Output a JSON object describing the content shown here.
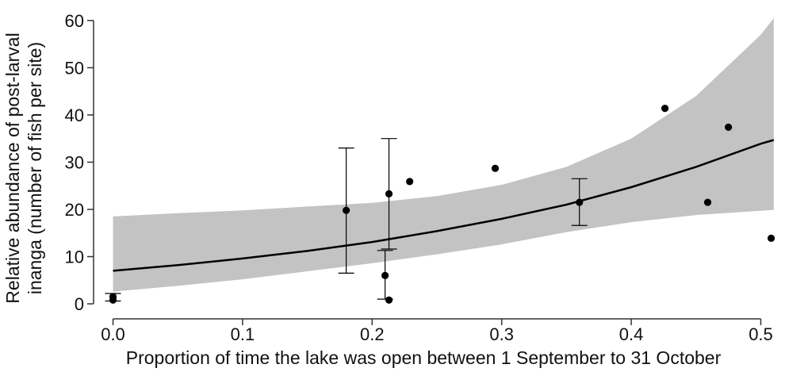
{
  "chart_data": {
    "type": "scatter",
    "xlabel": "Proportion of time the lake was open between 1 September to 31 October",
    "ylabel_lines": [
      "Relative abundance of post-larval",
      "inanga (number of fish per site)"
    ],
    "xlim": [
      -0.015,
      0.515
    ],
    "ylim": [
      -1.5,
      63
    ],
    "xticks": [
      0.0,
      0.1,
      0.2,
      0.3,
      0.4,
      0.5
    ],
    "xtick_labels": [
      "0.0",
      "0.1",
      "0.2",
      "0.3",
      "0.4",
      "0.5"
    ],
    "yticks": [
      0,
      10,
      20,
      30,
      40,
      50,
      60
    ],
    "ytick_labels": [
      "0",
      "10",
      "20",
      "30",
      "40",
      "50",
      "60"
    ],
    "grid": false,
    "points": [
      {
        "x": 0.0,
        "y": 1.5
      },
      {
        "x": 0.0,
        "y": 0.8
      },
      {
        "x": 0.18,
        "y": 19.8
      },
      {
        "x": 0.21,
        "y": 6.0
      },
      {
        "x": 0.213,
        "y": 23.3
      },
      {
        "x": 0.213,
        "y": 0.8
      },
      {
        "x": 0.229,
        "y": 25.9
      },
      {
        "x": 0.295,
        "y": 28.7
      },
      {
        "x": 0.36,
        "y": 21.5
      },
      {
        "x": 0.426,
        "y": 41.4
      },
      {
        "x": 0.459,
        "y": 21.5
      },
      {
        "x": 0.475,
        "y": 37.4
      },
      {
        "x": 0.508,
        "y": 13.9
      }
    ],
    "error_bars": [
      {
        "x": 0.0,
        "low": 0.6,
        "high": 2.2
      },
      {
        "x": 0.18,
        "low": 6.5,
        "high": 33.0
      },
      {
        "x": 0.21,
        "low": 1.0,
        "high": 11.3
      },
      {
        "x": 0.213,
        "low": 11.6,
        "high": 35.0
      },
      {
        "x": 0.36,
        "low": 16.6,
        "high": 26.5
      }
    ],
    "fit_line": {
      "x": [
        0.0,
        0.05,
        0.1,
        0.15,
        0.2,
        0.25,
        0.3,
        0.35,
        0.4,
        0.45,
        0.5,
        0.51
      ],
      "y": [
        7.0,
        8.2,
        9.6,
        11.2,
        13.1,
        15.4,
        18.0,
        21.0,
        24.7,
        29.0,
        33.9,
        34.7
      ]
    },
    "confidence_band": {
      "x": [
        0.0,
        0.05,
        0.1,
        0.15,
        0.2,
        0.25,
        0.3,
        0.35,
        0.4,
        0.45,
        0.5,
        0.51
      ],
      "lower": [
        2.6,
        3.8,
        5.2,
        6.9,
        8.6,
        10.5,
        12.6,
        15.2,
        17.3,
        18.8,
        19.7,
        19.9
      ],
      "upper": [
        18.5,
        19.2,
        19.8,
        20.6,
        21.4,
        22.8,
        25.2,
        29.0,
        35.0,
        44.0,
        57.0,
        60.5
      ]
    },
    "colors": {
      "band": "#c3c3c3",
      "line": "#000000",
      "points": "#000000",
      "axis": "#333333"
    }
  }
}
